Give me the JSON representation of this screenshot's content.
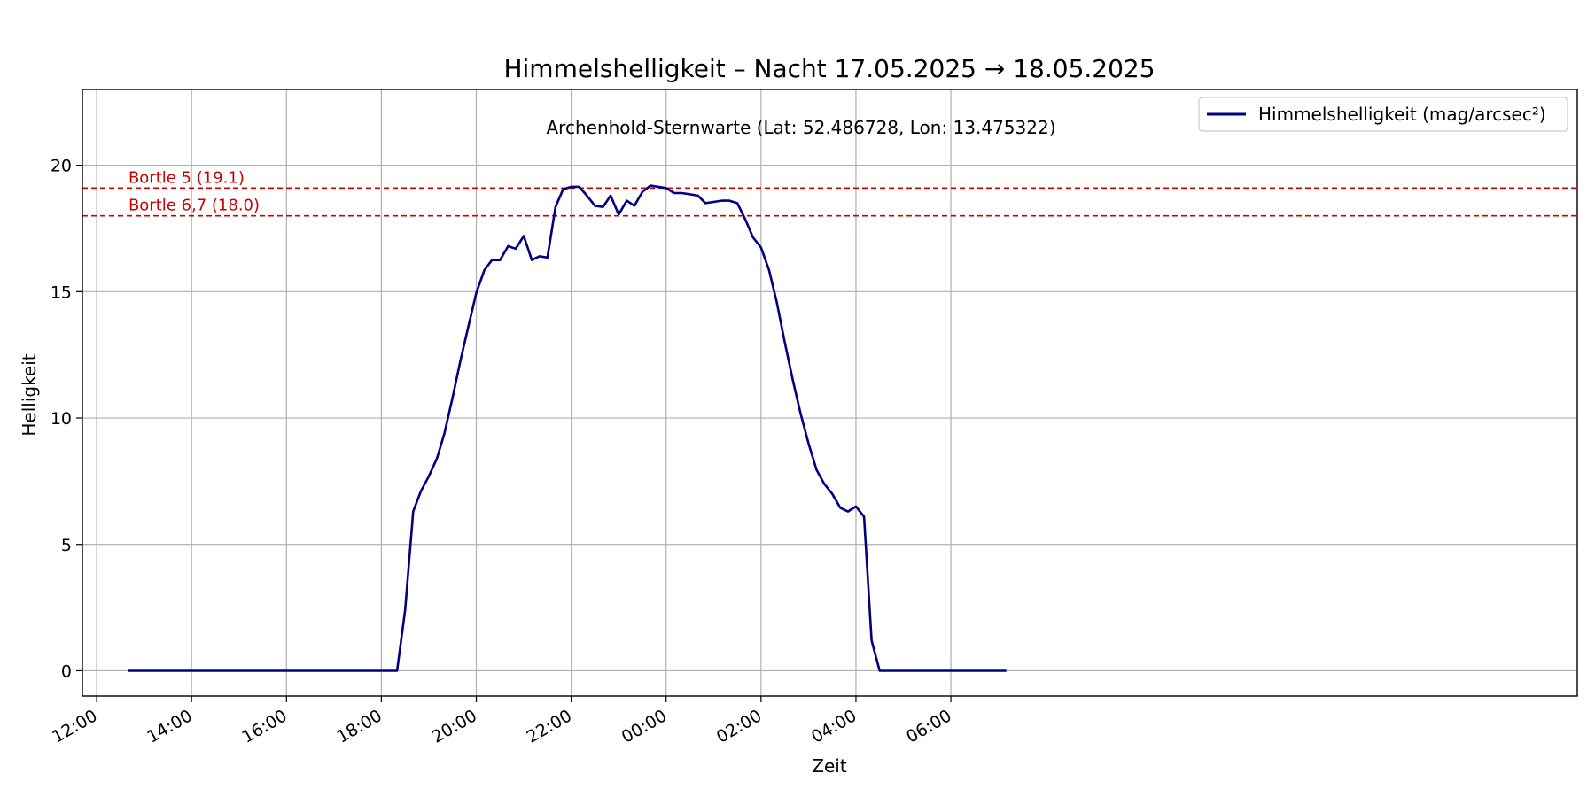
{
  "chart_data": {
    "type": "line",
    "title": "Himmelshelligkeit – Nacht 17.05.2025 → 18.05.2025",
    "subtitle": "Archenhold-Sternwarte (Lat: 52.486728, Lon: 13.475322)",
    "xlabel": "Zeit",
    "ylabel": "Helligkeit",
    "x_unit": "hours since 12:00 on 17.05.2025",
    "xlim": [
      -0.3,
      31.2
    ],
    "ylim": [
      -1,
      23
    ],
    "grid": true,
    "legend_position": "top-right",
    "x_ticks": [
      {
        "value": 0,
        "label": "12:00"
      },
      {
        "value": 2,
        "label": "14:00"
      },
      {
        "value": 4,
        "label": "16:00"
      },
      {
        "value": 6,
        "label": "18:00"
      },
      {
        "value": 8,
        "label": "20:00"
      },
      {
        "value": 10,
        "label": "22:00"
      },
      {
        "value": 12,
        "label": "00:00"
      },
      {
        "value": 14,
        "label": "02:00"
      },
      {
        "value": 16,
        "label": "04:00"
      },
      {
        "value": 18,
        "label": "06:00"
      }
    ],
    "y_ticks": [
      {
        "value": 0,
        "label": "0"
      },
      {
        "value": 5,
        "label": "5"
      },
      {
        "value": 10,
        "label": "10"
      },
      {
        "value": 15,
        "label": "15"
      },
      {
        "value": 20,
        "label": "20"
      }
    ],
    "reference_lines": [
      {
        "value": 19.1,
        "label": "Bortle 5 (19.1)",
        "color": "#cc0000"
      },
      {
        "value": 18.0,
        "label": "Bortle 6,7 (18.0)",
        "color": "#cc0000"
      }
    ],
    "series": [
      {
        "name": "Himmelshelligkeit (mag/arcsec²)",
        "color": "#000080",
        "points": [
          [
            0.67,
            0
          ],
          [
            6.33,
            0
          ],
          [
            6.5,
            2.4
          ],
          [
            6.67,
            6.3
          ],
          [
            6.83,
            7.1
          ],
          [
            7.0,
            7.7
          ],
          [
            7.17,
            8.4
          ],
          [
            7.33,
            9.4
          ],
          [
            7.5,
            10.8
          ],
          [
            7.67,
            12.3
          ],
          [
            7.83,
            13.6
          ],
          [
            8.0,
            14.95
          ],
          [
            8.17,
            15.85
          ],
          [
            8.33,
            16.25
          ],
          [
            8.5,
            16.25
          ],
          [
            8.67,
            16.8
          ],
          [
            8.83,
            16.7
          ],
          [
            9.0,
            17.2
          ],
          [
            9.17,
            16.25
          ],
          [
            9.33,
            16.4
          ],
          [
            9.5,
            16.35
          ],
          [
            9.67,
            18.35
          ],
          [
            9.83,
            19.05
          ],
          [
            10.0,
            19.15
          ],
          [
            10.17,
            19.15
          ],
          [
            10.33,
            18.8
          ],
          [
            10.5,
            18.4
          ],
          [
            10.67,
            18.35
          ],
          [
            10.83,
            18.8
          ],
          [
            11.0,
            18.05
          ],
          [
            11.17,
            18.6
          ],
          [
            11.33,
            18.4
          ],
          [
            11.5,
            18.95
          ],
          [
            11.67,
            19.2
          ],
          [
            11.83,
            19.15
          ],
          [
            12.0,
            19.1
          ],
          [
            12.17,
            18.9
          ],
          [
            12.33,
            18.9
          ],
          [
            12.5,
            18.85
          ],
          [
            12.67,
            18.8
          ],
          [
            12.83,
            18.5
          ],
          [
            13.0,
            18.55
          ],
          [
            13.17,
            18.6
          ],
          [
            13.33,
            18.6
          ],
          [
            13.5,
            18.5
          ],
          [
            13.67,
            17.85
          ],
          [
            13.83,
            17.15
          ],
          [
            14.0,
            16.75
          ],
          [
            14.17,
            15.85
          ],
          [
            14.33,
            14.6
          ],
          [
            14.5,
            13.0
          ],
          [
            14.67,
            11.5
          ],
          [
            14.83,
            10.2
          ],
          [
            15.0,
            9.0
          ],
          [
            15.17,
            7.95
          ],
          [
            15.33,
            7.4
          ],
          [
            15.5,
            7.0
          ],
          [
            15.67,
            6.45
          ],
          [
            15.83,
            6.3
          ],
          [
            16.0,
            6.5
          ],
          [
            16.17,
            6.1
          ],
          [
            16.33,
            1.2
          ],
          [
            16.5,
            0
          ],
          [
            19.17,
            0
          ]
        ]
      }
    ]
  }
}
